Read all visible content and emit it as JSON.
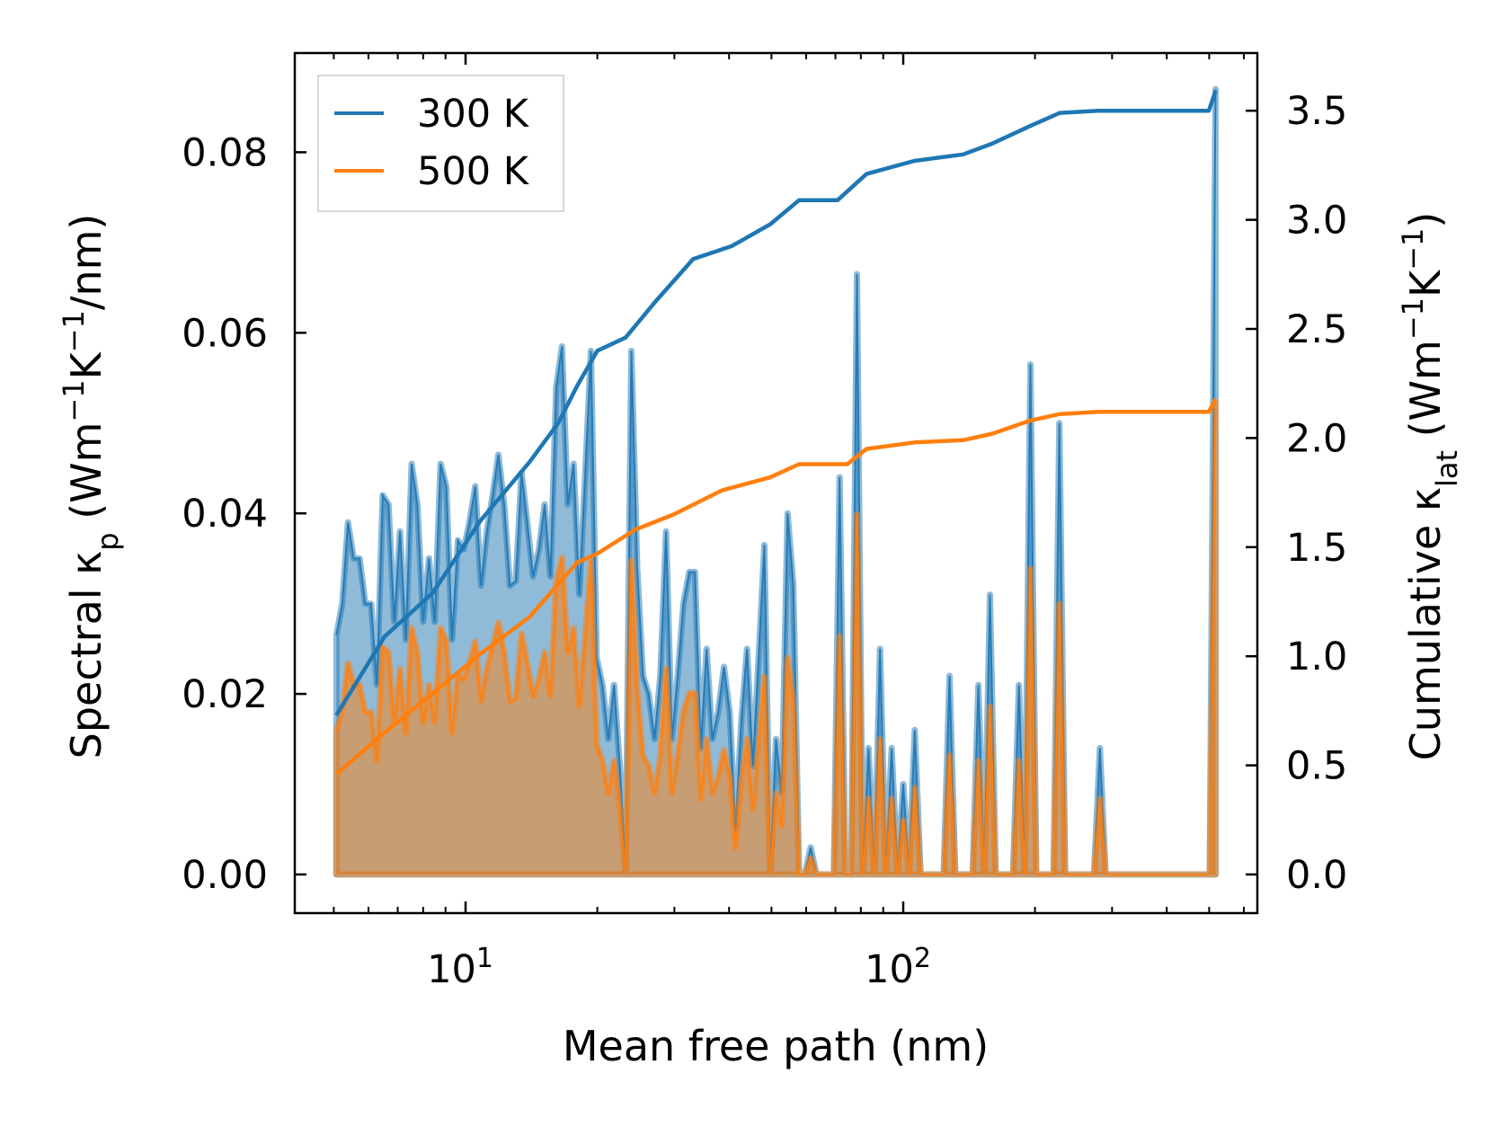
{
  "chart_data": {
    "type": "line",
    "xlabel": "Mean free path (nm)",
    "ylabel_left": "Spectral κ_p (Wm⁻¹K⁻¹/nm)",
    "ylabel_right": "Cumulative κ_lat (Wm⁻¹K⁻¹)",
    "xscale": "log",
    "xlim": [
      4.5,
      560
    ],
    "ylim_left": [
      -0.0065,
      0.089
    ],
    "ylim_right": [
      -0.18,
      3.72
    ],
    "x_ticks": [
      {
        "value": 10,
        "base": "10",
        "exp": "1"
      },
      {
        "value": 100,
        "base": "10",
        "exp": "2"
      }
    ],
    "y_left_ticks": [
      "0.00",
      "0.02",
      "0.04",
      "0.06",
      "0.08"
    ],
    "y_right_ticks": [
      "0.0",
      "0.5",
      "1.0",
      "1.5",
      "2.0",
      "2.5",
      "3.0",
      "3.5"
    ],
    "legend": {
      "position": "top-left",
      "entries": [
        "300 K",
        "500 K"
      ]
    },
    "colors": {
      "300 K": "#1f77b4",
      "500 K": "#ff7f0e"
    },
    "spectral_x_grid": {
      "spacing": "log",
      "start": 5.07,
      "stop": 517,
      "num": 153
    },
    "series": [
      {
        "name": "300 K",
        "spectral": [
          0.0265,
          0.03,
          0.039,
          0.035,
          0.035,
          0.03,
          0.03,
          0.021,
          0.042,
          0.041,
          0.028,
          0.038,
          0.026,
          0.0455,
          0.041,
          0.028,
          0.035,
          0.028,
          0.0455,
          0.043,
          0.026,
          0.037,
          0.036,
          0.039,
          0.043,
          0.032,
          0.038,
          0.042,
          0.0465,
          0.041,
          0.032,
          0.0325,
          0.0445,
          0.039,
          0.033,
          0.036,
          0.041,
          0.033,
          0.054,
          0.0585,
          0.041,
          0.0455,
          0.031,
          0.044,
          0.058,
          0.024,
          0.021,
          0.015,
          0.021,
          0.012,
          0.0005,
          0.058,
          0.034,
          0.022,
          0.02,
          0.015,
          0.022,
          0.038,
          0.015,
          0.022,
          0.03,
          0.0335,
          0.0335,
          0.014,
          0.025,
          0.015,
          0.018,
          0.023,
          0.018,
          0.005,
          0.017,
          0.025,
          0.012,
          0.024,
          0.0365,
          0,
          0.015,
          0.009,
          0.04,
          0.032,
          0,
          0,
          0.003,
          0,
          0,
          0,
          0,
          0.044,
          0,
          0,
          0.0665,
          0,
          0.014,
          0,
          0.025,
          0,
          0.014,
          0,
          0.01,
          0,
          0.016,
          0,
          0,
          0,
          0,
          0,
          0.022,
          0,
          0,
          0,
          0,
          0.021,
          0,
          0.031,
          0,
          0,
          0,
          0,
          0.021,
          0,
          0.0565,
          0,
          0,
          0,
          0,
          0.05,
          0,
          0,
          0,
          0,
          0,
          0,
          0.014,
          0,
          0,
          0,
          0,
          0,
          0,
          0,
          0,
          0,
          0,
          0,
          0,
          0,
          0,
          0,
          0,
          0,
          0,
          0,
          0.087
        ],
        "cumulative_x": [
          5.07,
          6.53,
          8.41,
          10.8,
          14.0,
          16.3,
          18.0,
          20.0,
          23.2,
          27.0,
          33.1,
          40.6,
          49.7,
          57.8,
          70.8,
          82.4,
          106,
          137,
          160,
          195,
          228,
          279,
          499,
          517
        ],
        "cumulative": [
          0.73,
          1.09,
          1.29,
          1.62,
          1.89,
          2.07,
          2.24,
          2.4,
          2.46,
          2.62,
          2.82,
          2.88,
          2.98,
          3.09,
          3.09,
          3.21,
          3.27,
          3.3,
          3.35,
          3.43,
          3.49,
          3.5,
          3.5,
          3.59
        ]
      },
      {
        "name": "500 K",
        "spectral": [
          0.0159,
          0.018,
          0.0234,
          0.021,
          0.021,
          0.018,
          0.018,
          0.0126,
          0.0252,
          0.0246,
          0.0168,
          0.0228,
          0.0156,
          0.0273,
          0.0246,
          0.0168,
          0.021,
          0.0168,
          0.0273,
          0.0258,
          0.0156,
          0.0222,
          0.0216,
          0.0234,
          0.0258,
          0.0192,
          0.0228,
          0.0252,
          0.0279,
          0.0246,
          0.0192,
          0.0195,
          0.0267,
          0.0234,
          0.0198,
          0.0216,
          0.0246,
          0.0198,
          0.0324,
          0.0351,
          0.0246,
          0.0273,
          0.0186,
          0.0264,
          0.0348,
          0.0144,
          0.0126,
          0.009,
          0.0126,
          0.0072,
          0.0003,
          0.0348,
          0.0204,
          0.0132,
          0.012,
          0.009,
          0.0132,
          0.0228,
          0.009,
          0.0132,
          0.018,
          0.0201,
          0.0201,
          0.0084,
          0.015,
          0.009,
          0.0108,
          0.0138,
          0.0108,
          0.003,
          0.0102,
          0.015,
          0.0072,
          0.0144,
          0.0219,
          0,
          0.009,
          0.0054,
          0.024,
          0.0192,
          0,
          0,
          0.0018,
          0,
          0,
          0,
          0,
          0.0264,
          0,
          0,
          0.0399,
          0,
          0.0084,
          0,
          0.015,
          0,
          0.0084,
          0,
          0.006,
          0,
          0.0096,
          0,
          0,
          0,
          0,
          0,
          0.0132,
          0,
          0,
          0,
          0,
          0.0126,
          0,
          0.0186,
          0,
          0,
          0,
          0,
          0.0126,
          0,
          0.0339,
          0,
          0,
          0,
          0,
          0.03,
          0,
          0,
          0,
          0,
          0,
          0,
          0.0084,
          0,
          0,
          0,
          0,
          0,
          0,
          0,
          0,
          0,
          0,
          0,
          0,
          0,
          0,
          0,
          0,
          0,
          0,
          0,
          0.0522
        ],
        "cumulative_x": [
          5.07,
          6.53,
          8.41,
          10.8,
          14.0,
          18.0,
          20.0,
          24.4,
          29.9,
          38.5,
          49.7,
          57.8,
          74.5,
          82.4,
          106,
          137,
          160,
          195,
          228,
          279,
          499,
          517
        ],
        "cumulative": [
          0.46,
          0.65,
          0.83,
          1.01,
          1.18,
          1.43,
          1.47,
          1.58,
          1.65,
          1.76,
          1.82,
          1.88,
          1.88,
          1.95,
          1.98,
          1.99,
          2.02,
          2.08,
          2.11,
          2.12,
          2.12,
          2.18
        ]
      }
    ]
  }
}
